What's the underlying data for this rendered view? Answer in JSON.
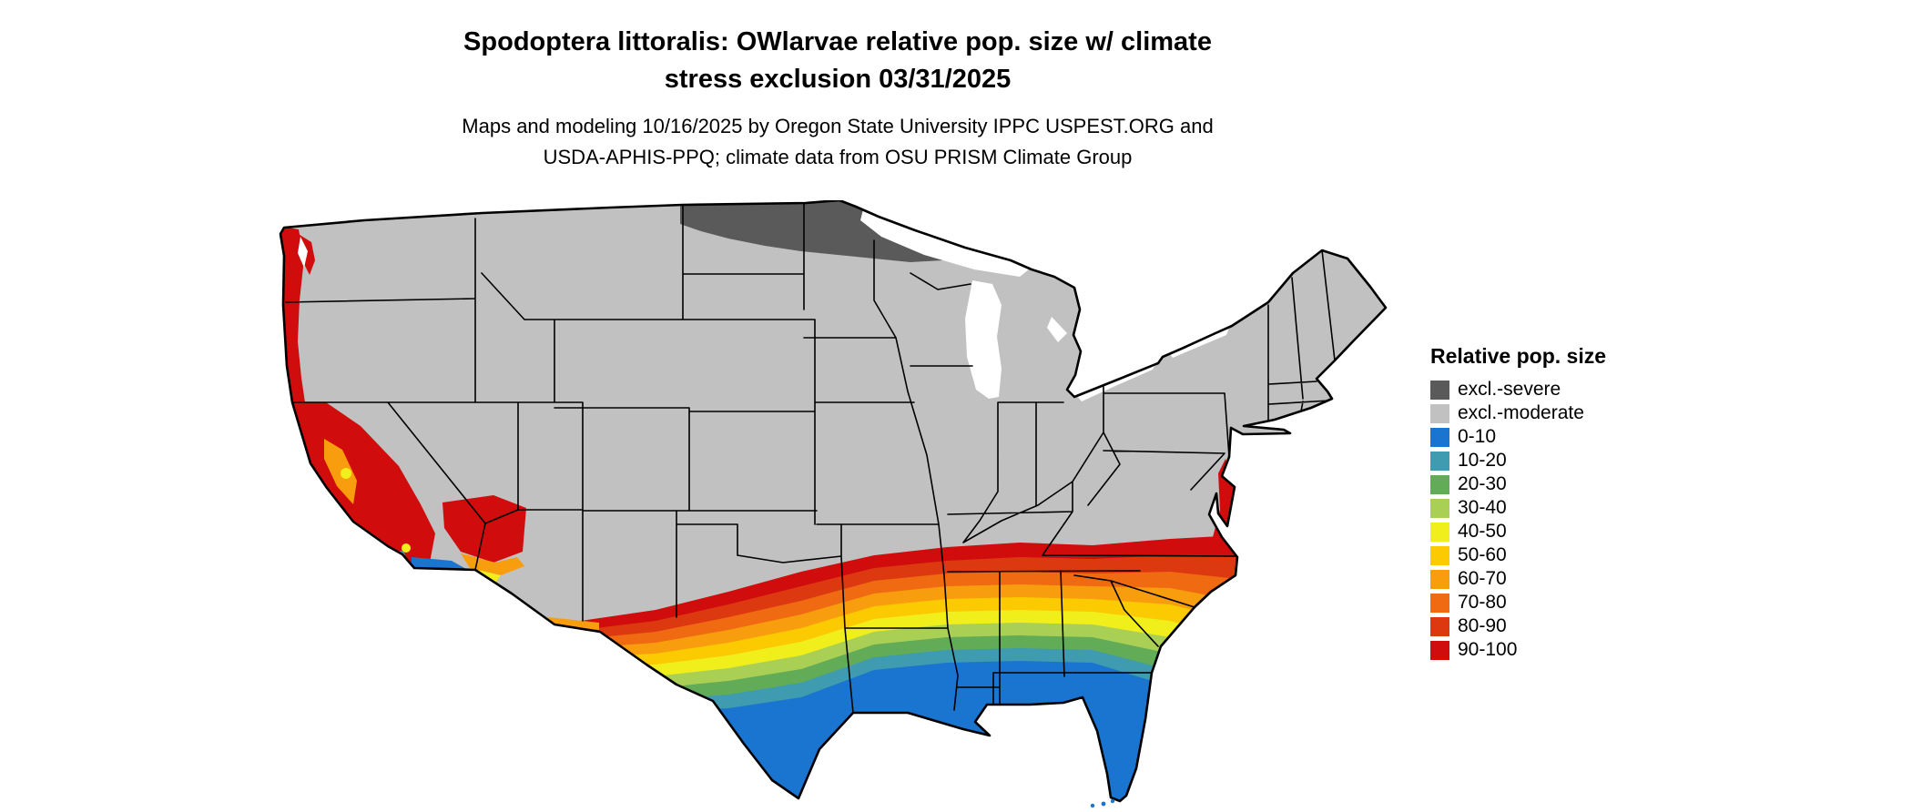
{
  "title": {
    "line1": "Spodoptera littoralis: OWlarvae relative pop. size w/ climate",
    "line2": "stress exclusion 03/31/2025"
  },
  "subtitle": {
    "line1": "Maps and modeling 10/16/2025 by Oregon State University IPPC USPEST.ORG and",
    "line2": "USDA-APHIS-PPQ; climate data from OSU PRISM Climate Group"
  },
  "legend": {
    "title": "Relative pop. size",
    "items": [
      {
        "label": "excl.-severe",
        "color": "#5a5a5a"
      },
      {
        "label": "excl.-moderate",
        "color": "#c1c1c1"
      },
      {
        "label": "0-10",
        "color": "#1a75d1"
      },
      {
        "label": "10-20",
        "color": "#3f9bb0"
      },
      {
        "label": "20-30",
        "color": "#62ab57"
      },
      {
        "label": "30-40",
        "color": "#a9cf54"
      },
      {
        "label": "40-50",
        "color": "#f0ef1c"
      },
      {
        "label": "50-60",
        "color": "#fbca00"
      },
      {
        "label": "60-70",
        "color": "#f89d0e"
      },
      {
        "label": "70-80",
        "color": "#ef6a10"
      },
      {
        "label": "80-90",
        "color": "#dc3911"
      },
      {
        "label": "90-100",
        "color": "#d10c0c"
      }
    ]
  },
  "map": {
    "region": "Continental United States",
    "base_color": "#c1c1c1",
    "severe_color": "#5a5a5a",
    "border_color": "#000000",
    "water_color": "#ffffff"
  }
}
